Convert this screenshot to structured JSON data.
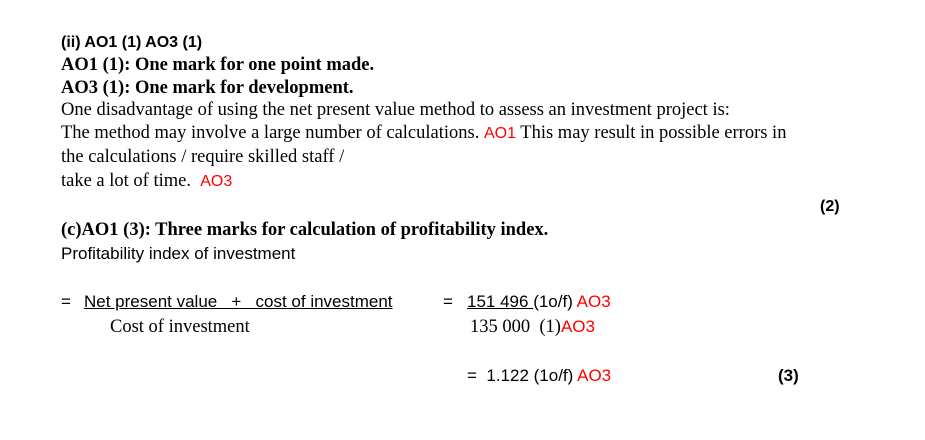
{
  "part_ii": {
    "heading": "(ii) AO1 (1) AO3 (1)",
    "ao1": "AO1 (1): One mark for one point made.",
    "ao3": "AO3 (1): One mark for development.",
    "line1": "One disadvantage of using the net present value method to assess an investment project is:",
    "line2a": "The method may involve a large number of calculations.",
    "tag1": "AO1",
    "line2b": "This may result in possible errors in",
    "line3": "the calculations / require skilled staff /",
    "line4": "take a lot of time.",
    "tag2": "AO3",
    "marks": "(2)"
  },
  "part_c": {
    "heading": "(c)AO1 (3): Three marks for calculation of profitability index.",
    "sub": "Profitability index of investment",
    "eq1": "=",
    "numerator": "Net present value   +   cost of investment",
    "denominator": "Cost of investment",
    "eq2": "=",
    "num_value": "151 496 ",
    "num_note": "(1o/f)",
    "num_tag": "AO3",
    "den_value": "135 000  (1)",
    "den_tag": "AO3",
    "result": "=  1.122 (1o/f)",
    "result_tag": "AO3",
    "marks": "(3)"
  },
  "colors": {
    "annotation": "#ff0000"
  }
}
